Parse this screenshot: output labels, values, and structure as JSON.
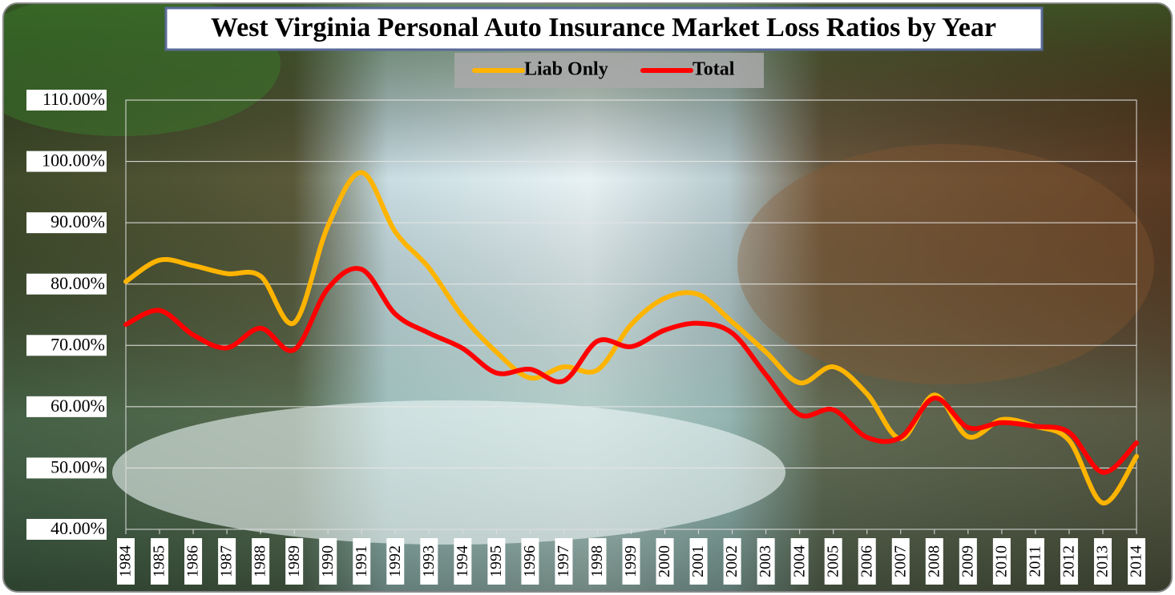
{
  "chart_data": {
    "type": "line",
    "title": "West Virginia Personal Auto Insurance Market Loss Ratios by Year",
    "categories": [
      "1984",
      "1985",
      "1986",
      "1987",
      "1988",
      "1989",
      "1990",
      "1991",
      "1992",
      "1993",
      "1994",
      "1995",
      "1996",
      "1997",
      "1998",
      "1999",
      "2000",
      "2001",
      "2002",
      "2003",
      "2004",
      "2005",
      "2006",
      "2007",
      "2008",
      "2009",
      "2010",
      "2011",
      "2012",
      "2013",
      "2014"
    ],
    "series": [
      {
        "name": "Liab Only",
        "color": "#ffb400",
        "values": [
          80.4,
          83.9,
          83.0,
          81.7,
          81.3,
          73.7,
          89.5,
          98.2,
          88.5,
          82.6,
          74.7,
          68.9,
          64.7,
          66.5,
          66.0,
          73.4,
          77.7,
          78.3,
          73.8,
          68.9,
          63.9,
          66.5,
          62.1,
          54.8,
          61.9,
          55.1,
          57.9,
          56.8,
          54.5,
          44.3,
          51.9
        ]
      },
      {
        "name": "Total",
        "color": "#ff0000",
        "values": [
          73.4,
          75.7,
          71.7,
          69.6,
          72.8,
          69.3,
          79.3,
          82.4,
          75.1,
          72.0,
          69.5,
          65.5,
          66.1,
          64.2,
          70.7,
          69.8,
          72.5,
          73.6,
          72.0,
          65.2,
          58.7,
          59.5,
          55.0,
          55.0,
          61.4,
          56.6,
          57.4,
          56.8,
          55.8,
          49.3,
          54.1
        ]
      }
    ],
    "ylim": [
      40,
      110
    ],
    "yticks": [
      {
        "value": 40,
        "label": "40.00%"
      },
      {
        "value": 50,
        "label": "50.00%"
      },
      {
        "value": 60,
        "label": "60.00%"
      },
      {
        "value": 70,
        "label": "70.00%"
      },
      {
        "value": 80,
        "label": "80.00%"
      },
      {
        "value": 90,
        "label": "90.00%"
      },
      {
        "value": 100,
        "label": "100.00%"
      },
      {
        "value": 110,
        "label": "110.00%"
      }
    ],
    "grid": true,
    "smooth": true
  }
}
